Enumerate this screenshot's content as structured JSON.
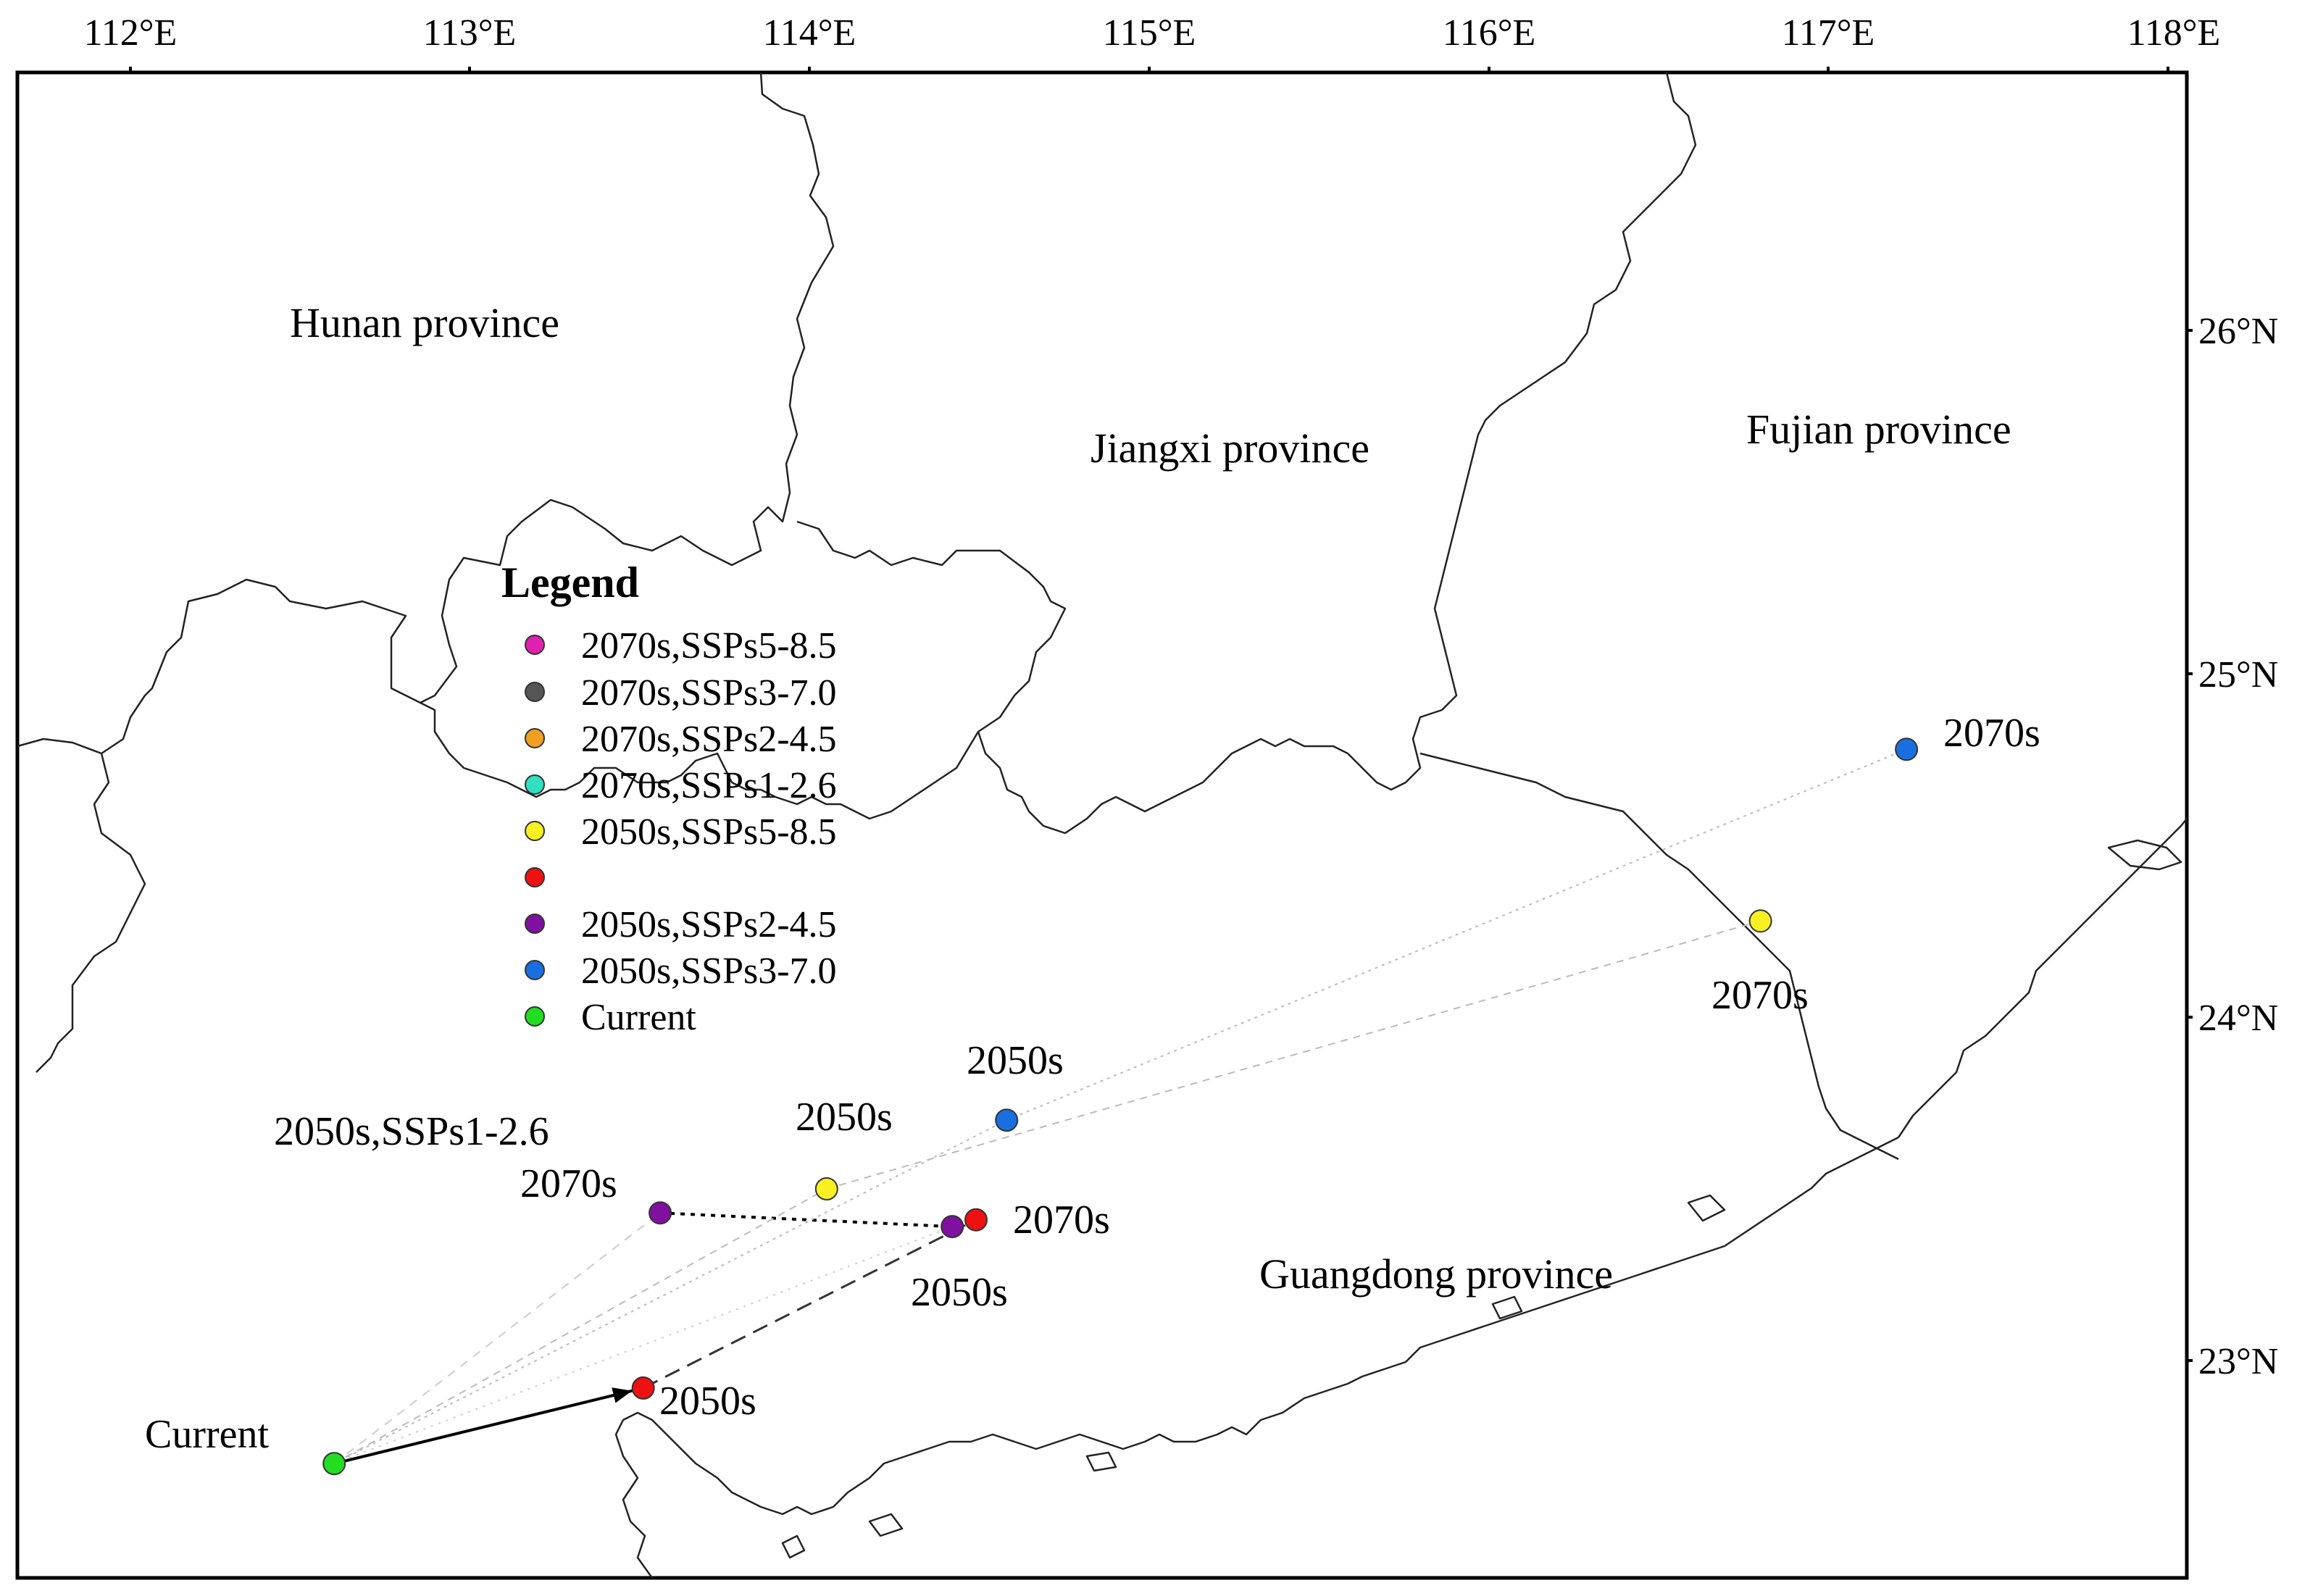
{
  "axes": {
    "top_ticks": [
      "112°E",
      "113°E",
      "114°E",
      "115°E",
      "116°E",
      "117°E",
      "118°E"
    ],
    "right_ticks": [
      "26°N",
      "25°N",
      "24°N",
      "23°N"
    ]
  },
  "provinces": [
    {
      "id": "hunan",
      "label": "Hunan province"
    },
    {
      "id": "jiangxi",
      "label": "Jiangxi province"
    },
    {
      "id": "fujian",
      "label": "Fujian province"
    },
    {
      "id": "guangdong",
      "label": "Guangdong province"
    }
  ],
  "legend": {
    "title": "Legend",
    "items": [
      {
        "label": "2070s,SSPs5-8.5",
        "color": "#e020b0"
      },
      {
        "label": "2070s,SSPs3-7.0",
        "color": "#555555"
      },
      {
        "label": "2070s,SSPs2-4.5",
        "color": "#f0a020"
      },
      {
        "label": "2070s,SSPs1-2.6",
        "color": "#30e0c0"
      },
      {
        "label": "2050s,SSPs5-8.5",
        "color": "#f8f020"
      },
      {
        "label": "",
        "color": "#ee1111"
      },
      {
        "label": "2050s,SSPs2-4.5",
        "color": "#8010a0"
      },
      {
        "label": "2050s,SSPs3-7.0",
        "color": "#1a6fe0"
      },
      {
        "label": "Current",
        "color": "#22dd22"
      }
    ]
  },
  "centroids": [
    {
      "id": "current",
      "label": "Current",
      "lon": 112.6,
      "lat": 22.7,
      "color": "#22dd22"
    },
    {
      "id": "red-2050",
      "label": "2050s",
      "lon": 113.51,
      "lat": 22.92,
      "color": "#ee1111"
    },
    {
      "id": "red-2070",
      "label": "2070s",
      "lon": 114.49,
      "lat": 23.41,
      "color": "#ee1111"
    },
    {
      "id": "purple-2050",
      "label": "2050s",
      "lon": 114.42,
      "lat": 23.39,
      "color": "#8010a0"
    },
    {
      "id": "purple-2070",
      "label": "2070s",
      "lon": 113.56,
      "lat": 23.43,
      "color": "#8010a0"
    },
    {
      "id": "yellow-2050",
      "label": "2050s",
      "lon": 114.05,
      "lat": 23.5,
      "color": "#f8f020"
    },
    {
      "id": "yellow-2070",
      "label": "2070s",
      "lon": 116.8,
      "lat": 24.28,
      "color": "#f8f020"
    },
    {
      "id": "blue-2050",
      "label": "2050s",
      "lon": 114.58,
      "lat": 23.7,
      "color": "#1a6fe0"
    },
    {
      "id": "blue-2070",
      "label": "2070s",
      "lon": 117.23,
      "lat": 24.78,
      "color": "#1a6fe0"
    }
  ],
  "annotations": [
    {
      "id": "ssp126-note",
      "text": "2050s,SSPs1-2.6"
    }
  ]
}
